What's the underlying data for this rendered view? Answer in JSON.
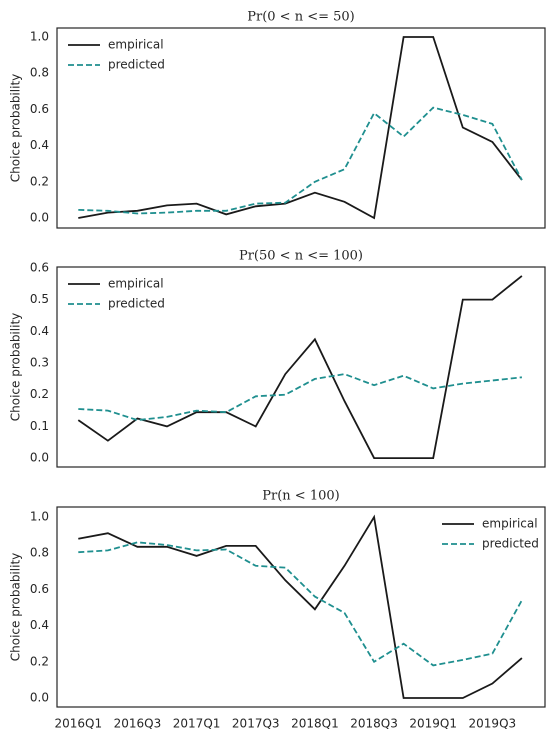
{
  "chart_data": [
    {
      "type": "line",
      "title": "Pr(0 < n <= 50)",
      "y_label": "Choice probability",
      "ylim": [
        -0.055,
        1.05
      ],
      "yticks": [
        {
          "value": 0,
          "label": "0.0"
        },
        0.2,
        0.4,
        0.6,
        0.8,
        {
          "value": 1,
          "label": "1.0"
        }
      ],
      "legend": "upper left",
      "grid": false,
      "series": [
        {
          "name": "empirical",
          "color": "#1a1a1a",
          "linestyle": "solid",
          "values": [
            0.0,
            0.03,
            0.04,
            0.07,
            0.08,
            0.02,
            0.065,
            0.08,
            0.14,
            0.09,
            0.0,
            1.0,
            1.0,
            0.5,
            0.42,
            0.21
          ]
        },
        {
          "name": "predicted",
          "color": "#1f8f8f",
          "linestyle": "dashed",
          "values": [
            0.045,
            0.04,
            0.025,
            0.03,
            0.04,
            0.04,
            0.08,
            0.085,
            0.2,
            0.27,
            0.58,
            0.45,
            0.61,
            0.57,
            0.52,
            0.21
          ]
        }
      ]
    },
    {
      "type": "line",
      "title": "Pr(50 < n <= 100)",
      "y_label": "Choice probability",
      "ylim": [
        -0.028,
        0.603
      ],
      "yticks": [
        {
          "value": 0,
          "label": "0.0"
        },
        0.1,
        0.2,
        0.3,
        0.4,
        0.5,
        0.6
      ],
      "legend": "upper left",
      "grid": false,
      "series": [
        {
          "name": "empirical",
          "color": "#1a1a1a",
          "linestyle": "solid",
          "values": [
            0.12,
            0.055,
            0.125,
            0.1,
            0.145,
            0.145,
            0.1,
            0.265,
            0.375,
            0.18,
            0.0,
            0.0,
            0.0,
            0.5,
            0.5,
            0.575
          ]
        },
        {
          "name": "predicted",
          "color": "#1f8f8f",
          "linestyle": "dashed",
          "values": [
            0.155,
            0.15,
            0.12,
            0.13,
            0.15,
            0.145,
            0.195,
            0.2,
            0.25,
            0.265,
            0.23,
            0.26,
            0.22,
            0.235,
            0.245,
            0.255
          ]
        }
      ]
    },
    {
      "type": "line",
      "title": "Pr(n < 100)",
      "y_label": "Choice probability",
      "categories": [
        "2016Q1",
        null,
        "2016Q3",
        null,
        "2017Q1",
        null,
        "2017Q3",
        null,
        "2018Q1",
        null,
        "2018Q3",
        null,
        "2019Q1",
        null,
        "2019Q3",
        null
      ],
      "ylim": [
        -0.05,
        1.055
      ],
      "yticks": [
        {
          "value": 0,
          "label": "0.0"
        },
        0.2,
        0.4,
        0.6,
        0.8,
        {
          "value": 1,
          "label": "1.0"
        }
      ],
      "legend": "upper right",
      "grid": false,
      "series": [
        {
          "name": "empirical",
          "color": "#1a1a1a",
          "linestyle": "solid",
          "values": [
            0.88,
            0.91,
            0.835,
            0.835,
            0.785,
            0.84,
            0.84,
            0.65,
            0.49,
            0.73,
            1.0,
            0.0,
            0.0,
            0.0,
            0.08,
            0.22
          ]
        },
        {
          "name": "predicted",
          "color": "#1f8f8f",
          "linestyle": "dashed",
          "values": [
            0.805,
            0.815,
            0.86,
            0.845,
            0.815,
            0.82,
            0.73,
            0.72,
            0.56,
            0.47,
            0.2,
            0.3,
            0.18,
            0.21,
            0.245,
            0.54
          ]
        }
      ]
    }
  ]
}
